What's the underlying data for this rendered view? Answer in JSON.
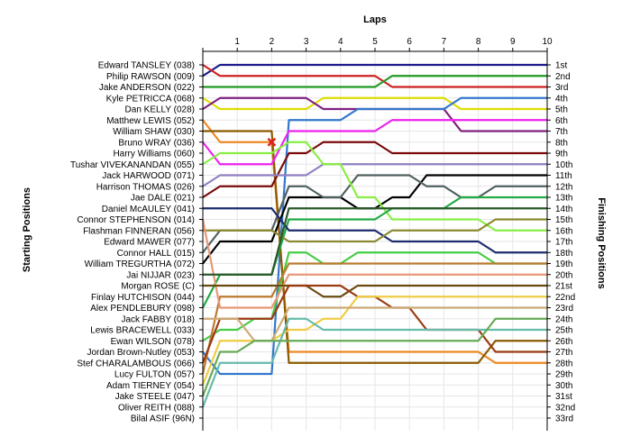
{
  "chart_data": {
    "type": "line",
    "title": "",
    "xlabel": "Laps",
    "ylabel_left": "Starting Positions",
    "ylabel_right": "Finishing Positions",
    "x": [
      0,
      1,
      2,
      3,
      4,
      5,
      6,
      7,
      8,
      9,
      10
    ],
    "x_tick_labels": [
      "1",
      "2",
      "3",
      "4",
      "5",
      "6",
      "7",
      "8",
      "9",
      "10"
    ],
    "y_reversed": true,
    "ylim": [
      1,
      33
    ],
    "grid": true,
    "left_labels": [
      "Edward TANSLEY (038)",
      "Philip RAWSON (009)",
      "Jake ANDERSON (022)",
      "Kyle PETRICCA (068)",
      "Dan KELLY (028)",
      "Matthew LEWIS (052)",
      "William SHAW (030)",
      "Bruno WRAY (036)",
      "Harry Williams (060)",
      "Tushar VIVEKANANDAN (055)",
      "Jack HARWOOD (071)",
      "Harrison THOMAS (026)",
      "Jae DALE (021)",
      "Daniel McAULEY (041)",
      "Connor STEPHENSON (014)",
      "Flashman FINNERAN (056)",
      "Edward MAWER (077)",
      "Connor HALL (015)",
      "William TREGURTHA (072)",
      "Jai NIJJAR (023)",
      "Morgan ROSE (C)",
      "Finlay HUTCHISON (044)",
      "Alex PENDLEBURY (098)",
      "Jack FABBY (018)",
      "Lewis BRACEWELL (033)",
      "Ewan WILSON (078)",
      "Jordan Brown-Nutley (053)",
      "Stef CHARALAMBOUS (066)",
      "Lucy FULTON (057)",
      "Adam TIERNEY (054)",
      "Jake STEELE (047)",
      "Oliver REITH (088)",
      "Bilal ASIF (96N)"
    ],
    "right_labels": [
      "1st",
      "2nd",
      "3rd",
      "4th",
      "5th",
      "6th",
      "7th",
      "8th",
      "9th",
      "10th",
      "11th",
      "12th",
      "13th",
      "14th",
      "15th",
      "16th",
      "17th",
      "18th",
      "19th",
      "20th",
      "21st",
      "22nd",
      "23rd",
      "24th",
      "25th",
      "26th",
      "27th",
      "28th",
      "29th",
      "30th",
      "31st",
      "32nd",
      "33rd"
    ],
    "series": [
      {
        "color": "#1a1a8c",
        "positions": [
          2,
          1,
          1,
          1,
          1,
          1,
          1,
          1,
          1,
          1,
          1
        ]
      },
      {
        "color": "#cc2222",
        "positions": [
          1,
          2,
          2,
          2,
          2,
          2,
          3,
          3,
          3,
          3,
          3
        ]
      },
      {
        "color": "#229922",
        "positions": [
          3,
          3,
          3,
          3,
          3,
          3,
          2,
          2,
          2,
          2,
          2
        ]
      },
      {
        "color": "#dddd00",
        "positions": [
          4,
          5,
          5,
          5,
          4,
          4,
          4,
          4,
          5,
          5,
          5
        ]
      },
      {
        "color": "#802080",
        "positions": [
          5,
          4,
          4,
          4,
          5,
          5,
          5,
          5,
          7,
          7,
          7
        ]
      },
      {
        "color": "#3377cc",
        "positions": [
          27,
          29,
          29,
          6,
          6,
          5,
          5,
          5,
          4,
          4,
          4
        ]
      },
      {
        "color": "#ee8822",
        "positions": [
          6,
          8,
          8,
          27,
          27,
          27,
          27,
          27,
          27,
          28,
          28
        ]
      },
      {
        "color": "#8b5a00",
        "positions": [
          7,
          7,
          7,
          28,
          28,
          28,
          28,
          28,
          28,
          26,
          26
        ]
      },
      {
        "color": "#ee22ee",
        "positions": [
          8,
          10,
          10,
          7,
          7,
          7,
          6,
          6,
          6,
          6,
          6
        ]
      },
      {
        "color": "#7a0a0a",
        "positions": [
          13,
          12,
          12,
          9,
          8,
          8,
          9,
          9,
          9,
          9,
          9
        ]
      },
      {
        "color": "#9080c0",
        "positions": [
          12,
          11,
          11,
          11,
          10,
          10,
          10,
          10,
          10,
          10,
          10
        ]
      },
      {
        "color": "#000000",
        "positions": [
          19,
          17,
          17,
          13,
          13,
          14,
          13,
          11,
          11,
          11,
          11
        ]
      },
      {
        "color": "#506060",
        "positions": [
          18,
          16,
          16,
          12,
          13,
          11,
          11,
          12,
          13,
          12,
          12
        ]
      },
      {
        "color": "#88ee44",
        "positions": [
          10,
          9,
          9,
          8,
          10,
          13,
          15,
          15,
          15,
          16,
          16
        ]
      },
      {
        "color": "#22aa44",
        "positions": [
          23,
          20,
          20,
          15,
          15,
          15,
          14,
          14,
          13,
          13,
          13
        ]
      },
      {
        "color": "#1c2c6c",
        "positions": [
          14,
          14,
          14,
          16,
          16,
          16,
          17,
          17,
          17,
          18,
          18
        ]
      },
      {
        "color": "#8a8a30",
        "positions": [
          16,
          16,
          16,
          17,
          17,
          17,
          16,
          16,
          16,
          15,
          15
        ]
      },
      {
        "color": "#44cc44",
        "positions": [
          26,
          25,
          24,
          18,
          19,
          18,
          18,
          18,
          18,
          19,
          19
        ]
      },
      {
        "color": "#bb7a30",
        "positions": [
          29,
          22,
          22,
          19,
          19,
          19,
          19,
          19,
          19,
          19,
          19
        ]
      },
      {
        "color": "#e89878",
        "positions": [
          15,
          23,
          23,
          20,
          20,
          20,
          20,
          20,
          20,
          20,
          20
        ]
      },
      {
        "color": "#6a4a10",
        "positions": [
          21,
          21,
          21,
          21,
          22,
          21,
          21,
          21,
          21,
          21,
          21
        ]
      },
      {
        "color": "#9a3a10",
        "positions": [
          28,
          24,
          24,
          21,
          21,
          22,
          23,
          25,
          25,
          27,
          27
        ]
      },
      {
        "color": "#eecc44",
        "positions": [
          30,
          26,
          26,
          25,
          24,
          22,
          22,
          22,
          22,
          22,
          22
        ]
      },
      {
        "color": "#ccaa77",
        "positions": [
          24,
          24,
          26,
          23,
          23,
          23,
          23,
          23,
          23,
          23,
          23
        ]
      },
      {
        "color": "#66bbaa",
        "positions": [
          32,
          28,
          28,
          24,
          25,
          25,
          25,
          25,
          25,
          25,
          25
        ]
      },
      {
        "color": "#66aa55",
        "positions": [
          31,
          27,
          26,
          26,
          26,
          26,
          26,
          26,
          26,
          24,
          24
        ]
      },
      {
        "color": "#2a5a2a",
        "positions": [
          20,
          20,
          20,
          14,
          14,
          14,
          14,
          14,
          14,
          14,
          14
        ]
      }
    ],
    "retirement_markers": [
      {
        "lap": 2,
        "position": 8
      }
    ]
  }
}
